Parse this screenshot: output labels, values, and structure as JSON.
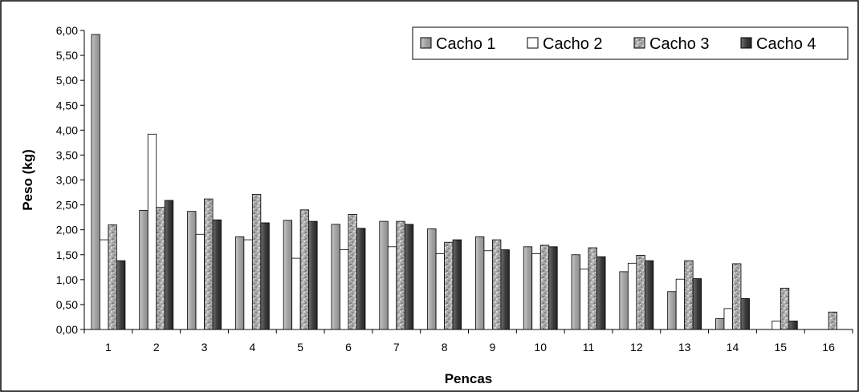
{
  "chart_data": {
    "type": "bar",
    "title": "",
    "xlabel": "Pencas",
    "ylabel": "Peso (kg)",
    "ylim": [
      0,
      6
    ],
    "ytick_step": 0.5,
    "ytick_labels": [
      "0,00",
      "0,50",
      "1,00",
      "1,50",
      "2,00",
      "2,50",
      "3,00",
      "3,50",
      "4,00",
      "4,50",
      "5,00",
      "5,50",
      "6,00"
    ],
    "categories": [
      "1",
      "2",
      "3",
      "4",
      "5",
      "6",
      "7",
      "8",
      "9",
      "10",
      "11",
      "12",
      "13",
      "14",
      "15",
      "16"
    ],
    "legend_position": "top-right",
    "grid": false,
    "series": [
      {
        "name": "Cacho 1",
        "pattern": "light-gray",
        "values": [
          5.92,
          2.39,
          2.37,
          1.86,
          2.19,
          2.11,
          2.17,
          2.02,
          1.86,
          1.66,
          1.5,
          1.16,
          0.76,
          0.22,
          null,
          null
        ]
      },
      {
        "name": "Cacho 2",
        "pattern": "white",
        "values": [
          1.8,
          3.92,
          1.91,
          1.8,
          1.43,
          1.6,
          1.66,
          1.52,
          1.58,
          1.52,
          1.21,
          1.33,
          1.01,
          0.42,
          0.17,
          null
        ]
      },
      {
        "name": "Cacho 3",
        "pattern": "mottled",
        "values": [
          2.1,
          2.45,
          2.62,
          2.71,
          2.4,
          2.31,
          2.17,
          1.75,
          1.8,
          1.69,
          1.64,
          1.49,
          1.38,
          1.32,
          0.83,
          0.35
        ]
      },
      {
        "name": "Cacho 4",
        "pattern": "dark-gray",
        "values": [
          1.38,
          2.59,
          2.2,
          2.14,
          2.17,
          2.03,
          2.11,
          1.8,
          1.6,
          1.66,
          1.46,
          1.38,
          1.02,
          0.62,
          0.17,
          null
        ]
      }
    ]
  }
}
